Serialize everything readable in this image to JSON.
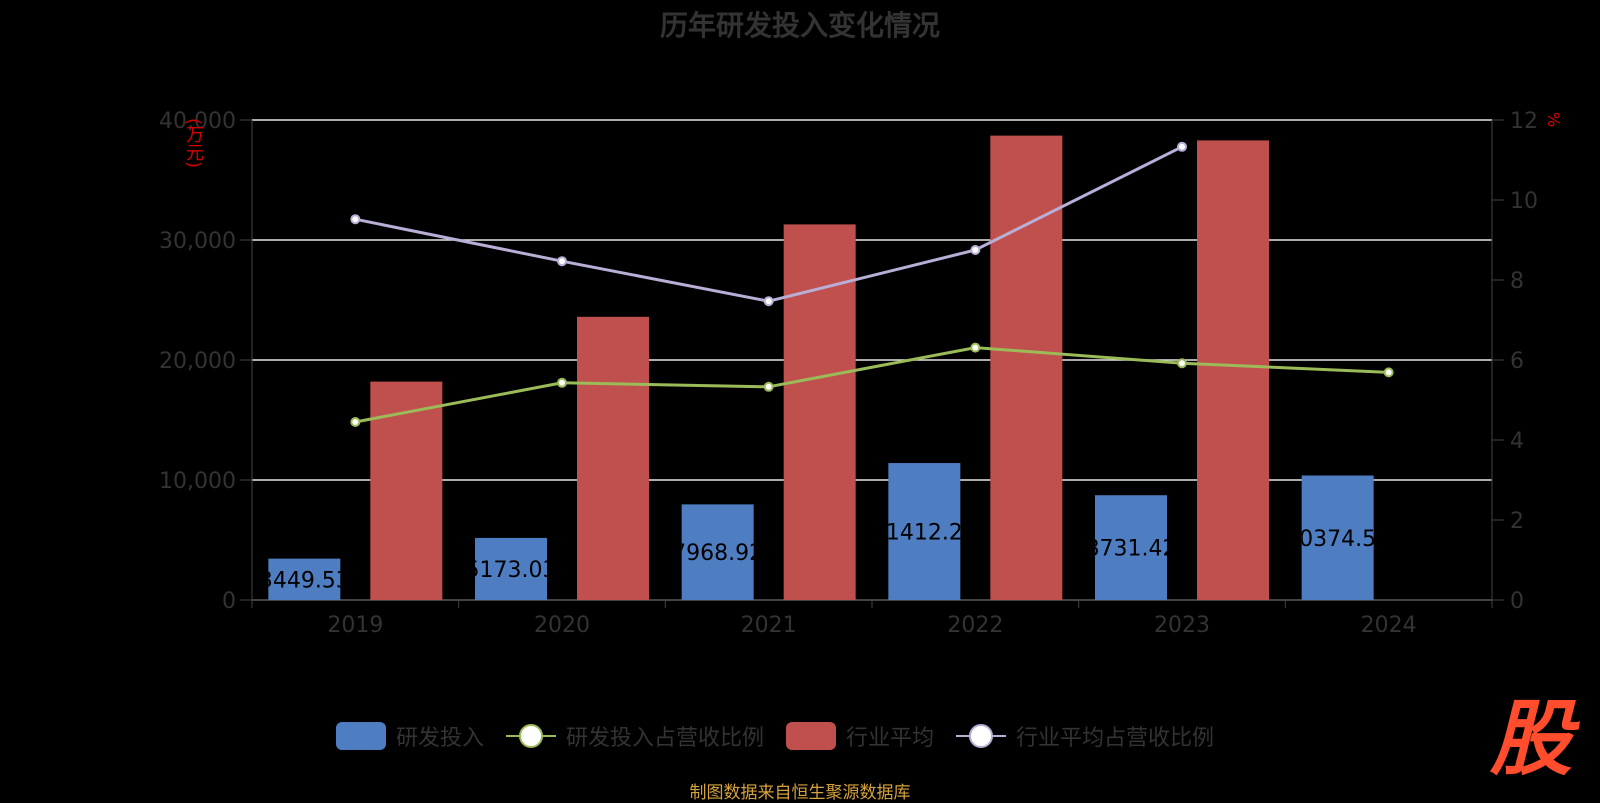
{
  "chart_data": {
    "type": "bar",
    "title": "历年研发投入变化情况",
    "categories": [
      "2019",
      "2020",
      "2021",
      "2022",
      "2023",
      "2024"
    ],
    "y_left": {
      "unit": "(万元)",
      "ylim": [
        0,
        40000
      ],
      "ticks": [
        "0",
        "10,000",
        "20,000",
        "30,000",
        "40,000"
      ]
    },
    "y_right": {
      "unit": "%",
      "ylim": [
        0,
        12
      ],
      "ticks": [
        "0",
        "2",
        "4",
        "6",
        "8",
        "10",
        "12"
      ]
    },
    "series": [
      {
        "name": "研发投入",
        "kind": "bar",
        "axis": "left",
        "color": "#4e7ec1",
        "values": [
          3449.53,
          5173.03,
          7968.92,
          11412.23,
          8731.42,
          10374.56
        ],
        "labels": [
          "3449.53",
          "5173.03",
          "7968.92",
          "11412.23",
          "8731.42",
          "10374.56"
        ]
      },
      {
        "name": "研发投入占营收比例",
        "kind": "line",
        "axis": "right",
        "color": "#9bbb59",
        "values": [
          4.45,
          5.43,
          5.33,
          6.31,
          5.92,
          5.69
        ]
      },
      {
        "name": "行业平均",
        "kind": "bar",
        "axis": "left",
        "color": "#c0504d",
        "values": [
          18200,
          23600,
          31300,
          38700,
          38300,
          null
        ]
      },
      {
        "name": "行业平均占营收比例",
        "kind": "line",
        "axis": "right",
        "color": "#b8aed6",
        "values": [
          9.52,
          8.47,
          7.47,
          8.75,
          11.33,
          null
        ]
      }
    ],
    "grid": true,
    "legend_position": "bottom"
  },
  "source_note": "制图数据来自恒生聚源数据库",
  "logo_text": "股"
}
